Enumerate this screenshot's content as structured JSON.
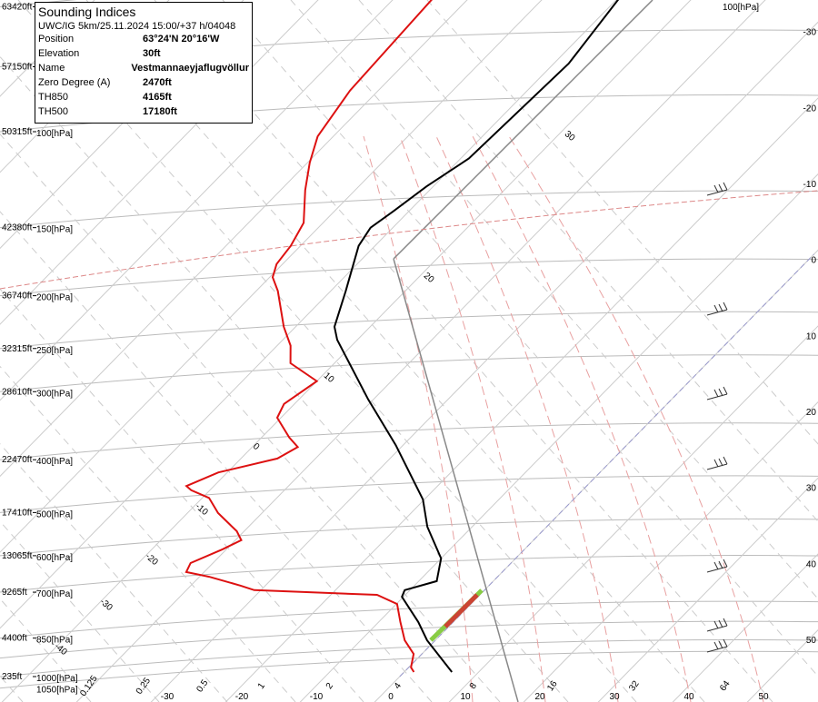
{
  "chart_data": {
    "type": "skewt",
    "info": {
      "title": "Sounding Indices",
      "model": "UWC/IG 5km/25.11.2024 15:00/+37 h/04048",
      "rows": [
        [
          "Position",
          "63°24'N 20°16'W"
        ],
        [
          "Elevation",
          "30ft"
        ],
        [
          "Name",
          "Vestmannaeyjaflugvöllur"
        ],
        [
          "Zero Degree (A)",
          "2470ft"
        ],
        [
          "TH850",
          "4165ft"
        ],
        [
          "TH500",
          "17180ft"
        ]
      ]
    },
    "yticks": [
      {
        "value": 59,
        "label": "63420ft"
      },
      {
        "value": 76,
        "label": "57150ft"
      },
      {
        "value": 100,
        "label": "50315ft"
      },
      {
        "value": 150,
        "label": "42380ft"
      },
      {
        "value": 200,
        "label": "36740ft"
      },
      {
        "value": 250,
        "label": "32315ft"
      },
      {
        "value": 300,
        "label": "28610ft"
      },
      {
        "value": 400,
        "label": "22470ft"
      },
      {
        "value": 500,
        "label": "17410ft"
      },
      {
        "value": 600,
        "label": "13065ft"
      },
      {
        "value": 700,
        "label": "9265ft"
      },
      {
        "value": 850,
        "label": "4400ft"
      },
      {
        "value": 1000,
        "label": "235ft"
      }
    ],
    "pressure_labels": [
      {
        "value": 100,
        "label": "100[hPa]"
      },
      {
        "value": 150,
        "label": "150[hPa]"
      },
      {
        "value": 200,
        "label": "200[hPa]"
      },
      {
        "value": 250,
        "label": "250[hPa]"
      },
      {
        "value": 300,
        "label": "300[hPa]"
      },
      {
        "value": 400,
        "label": "400[hPa]"
      },
      {
        "value": 500,
        "label": "500[hPa]"
      },
      {
        "value": 600,
        "label": "600[hPa]"
      },
      {
        "value": 700,
        "label": "700[hPa]"
      },
      {
        "value": 850,
        "label": "850[hPa]"
      },
      {
        "value": 1000,
        "label": "1000[hPa]"
      },
      {
        "value": 1050,
        "label": "1050[hPa]"
      }
    ],
    "top_label": "100[hPa]",
    "xticks": [
      -30,
      -20,
      -10,
      0,
      10,
      20,
      30,
      40,
      50
    ],
    "right_ticks": [
      -30,
      -20,
      -10,
      0,
      10,
      20,
      30,
      40,
      50
    ],
    "adiabat_labels": [
      "-40",
      "-30",
      "-20",
      "-10",
      "0",
      "10",
      "20",
      "30"
    ],
    "mixing_ratio_labels": [
      "0.125",
      "0.25",
      "0.5",
      "1",
      "2",
      "4",
      "8",
      "16",
      "32",
      "64"
    ],
    "series": [
      {
        "color": "#000000",
        "pressure": [
          981,
          858,
          794,
          714,
          694,
          668,
          607,
          531,
          473,
          376,
          310,
          241,
          228,
          196,
          162,
          150,
          140,
          126,
          112,
          75,
          57
        ],
        "values": [
          6.4,
          -1.1,
          -4.7,
          -10.2,
          -10.7,
          -7.6,
          -10,
          -16,
          -20.2,
          -31,
          -40.7,
          -52.7,
          -54.8,
          -58,
          -62.2,
          -63,
          -62.1,
          -60.9,
          -58.9,
          -58,
          -59.8
        ]
      },
      {
        "color": "#dd1111",
        "pressure": [
          981,
          962,
          909,
          858,
          794,
          736,
          708,
          694,
          681,
          656,
          643,
          619,
          584,
          562,
          541,
          501,
          470,
          455,
          447,
          422,
          398,
          379,
          364,
          335,
          316,
          287,
          266,
          247,
          228,
          196,
          185,
          175,
          162,
          147,
          128,
          114,
          102,
          84,
          57
        ],
        "values": [
          1.3,
          0.3,
          -1.1,
          -4.1,
          -7.1,
          -9.9,
          -13.8,
          -30.9,
          -33.3,
          -38.7,
          -42.4,
          -43,
          -40.5,
          -39.2,
          -41,
          -45.9,
          -49.1,
          -52.5,
          -53.7,
          -51.2,
          -45.1,
          -43.9,
          -46.3,
          -50.5,
          -51.4,
          -50,
          -55.9,
          -58.2,
          -61.6,
          -67.1,
          -69.6,
          -70.8,
          -71.3,
          -72.6,
          -76.7,
          -79.7,
          -82.1,
          -83.8,
          -84.8
        ]
      }
    ]
  }
}
